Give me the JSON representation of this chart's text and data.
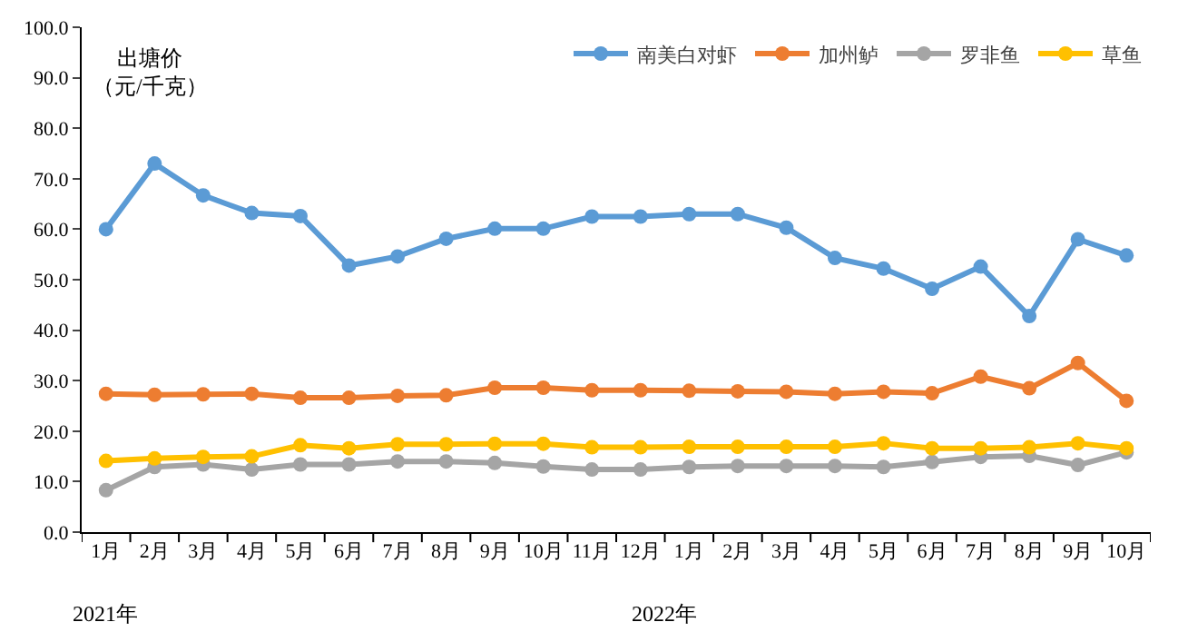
{
  "chart_data": {
    "type": "line",
    "ylabel": "出塘价（元/千克）",
    "categories": [
      "1月",
      "2月",
      "3月",
      "4月",
      "5月",
      "6月",
      "7月",
      "8月",
      "9月",
      "10月",
      "11月",
      "12月",
      "1月",
      "2月",
      "3月",
      "4月",
      "5月",
      "6月",
      "7月",
      "8月",
      "9月",
      "10月"
    ],
    "series": [
      {
        "name": "南美白对虾",
        "color": "#5b9bd5",
        "values": [
          60.0,
          73.0,
          66.7,
          63.2,
          62.6,
          52.8,
          54.6,
          58.1,
          60.1,
          60.1,
          62.5,
          62.5,
          63.0,
          63.0,
          60.3,
          54.3,
          52.2,
          48.2,
          52.6,
          42.8,
          58.0,
          54.8
        ]
      },
      {
        "name": "加州鲈",
        "color": "#ed7d31",
        "values": [
          27.4,
          27.2,
          27.3,
          27.4,
          26.6,
          26.6,
          27.0,
          27.1,
          28.6,
          28.6,
          28.1,
          28.1,
          28.0,
          27.9,
          27.8,
          27.4,
          27.8,
          27.5,
          30.8,
          28.5,
          33.5,
          26.0
        ]
      },
      {
        "name": "罗非鱼",
        "color": "#a5a5a5",
        "values": [
          8.3,
          12.9,
          13.4,
          12.4,
          13.4,
          13.4,
          14.0,
          14.0,
          13.7,
          13.0,
          12.4,
          12.4,
          12.9,
          13.1,
          13.1,
          13.1,
          12.9,
          13.9,
          14.9,
          15.1,
          13.3,
          15.8
        ]
      },
      {
        "name": "草鱼",
        "color": "#ffc000",
        "values": [
          14.1,
          14.6,
          14.9,
          15.0,
          17.2,
          16.6,
          17.4,
          17.4,
          17.5,
          17.5,
          16.8,
          16.8,
          16.9,
          16.9,
          16.9,
          16.9,
          17.6,
          16.6,
          16.6,
          16.8,
          17.6,
          16.6
        ]
      }
    ],
    "annotations": [
      "2021年",
      "2022年"
    ],
    "ylim": [
      0,
      100
    ],
    "yticks": [
      {
        "value": 0,
        "label": "0.0"
      },
      {
        "value": 10,
        "label": "10.0"
      },
      {
        "value": 20,
        "label": "20.0"
      },
      {
        "value": 30,
        "label": "30.0"
      },
      {
        "value": 40,
        "label": "40.0"
      },
      {
        "value": 50,
        "label": "50.0"
      },
      {
        "value": 60,
        "label": "60.0"
      },
      {
        "value": 70,
        "label": "70.0"
      },
      {
        "value": 80,
        "label": "80.0"
      },
      {
        "value": 90,
        "label": "90.0"
      },
      {
        "value": 100,
        "label": "100.0"
      }
    ],
    "grid": false,
    "legend": "top right",
    "marker": "circle",
    "line_style": "solid"
  }
}
